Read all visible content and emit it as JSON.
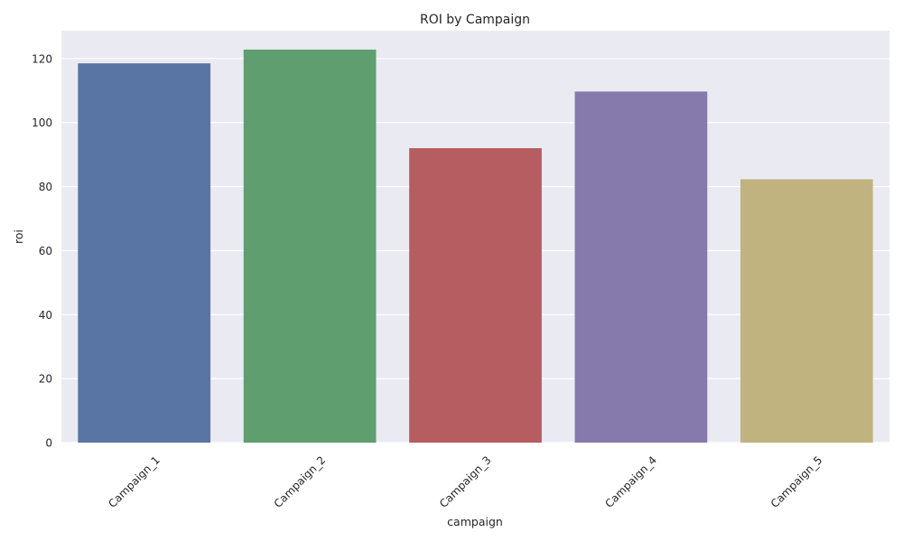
{
  "chart_data": {
    "type": "bar",
    "title": "ROI by Campaign",
    "xlabel": "campaign",
    "ylabel": "roi",
    "categories": [
      "Campaign_1",
      "Campaign_2",
      "Campaign_3",
      "Campaign_4",
      "Campaign_5"
    ],
    "values": [
      118.5,
      122.8,
      92.0,
      109.7,
      82.3
    ],
    "colors": [
      "#5975a4",
      "#5f9e6e",
      "#b55d60",
      "#857aab",
      "#c1b37f"
    ],
    "ylim": [
      0,
      128.7
    ],
    "yticks": [
      0,
      20,
      40,
      60,
      80,
      100,
      120
    ],
    "grid": true,
    "background": "#eaeaf2",
    "x_tick_rotation": 45
  }
}
